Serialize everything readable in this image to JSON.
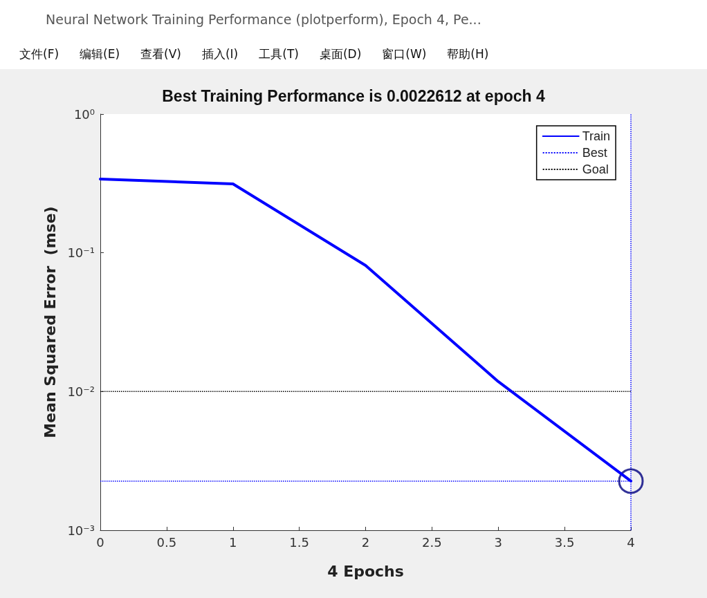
{
  "chart_data": {
    "type": "line",
    "title": "Best Training Performance is 0.0022612 at epoch 4",
    "xlabel": "4 Epochs",
    "ylabel": "Mean Squared Error  (mse)",
    "annotations": [
      "Neural Network Training Performance (plotperform), Epoch 4, Pe...",
      "文件(F)",
      "编辑(E)",
      "查看(V)",
      "插入(I)",
      "工具(T)",
      "桌面(D)",
      "窗口(W)",
      "帮助(H)"
    ],
    "x": [
      0,
      1,
      2,
      3,
      4
    ],
    "series": [
      {
        "name": "Train",
        "color": "#0000ff",
        "values": [
          0.34,
          0.314,
          0.081,
          0.0118,
          0.0022612
        ]
      },
      {
        "type": "scatter",
        "marker": "circle",
        "color": "#000080",
        "x": [
          4
        ],
        "values": [
          0.0022612
        ]
      }
    ],
    "ref_lines": [
      {
        "axis": "x",
        "value": 4,
        "label": "Best",
        "color": "#0000ff",
        "line_style": "dotted"
      },
      {
        "axis": "y",
        "value": 0.0022612,
        "color": "#0000ff",
        "line_style": "dotted"
      },
      {
        "axis": "y",
        "value": 0.01,
        "label": "Goal",
        "color": "#000000",
        "line_style": "dotted"
      }
    ],
    "xlim": [
      0,
      4
    ],
    "xticks": [
      0,
      0.5,
      1,
      1.5,
      2,
      2.5,
      3,
      3.5,
      4
    ],
    "ylim": [
      0.001,
      1
    ],
    "yticks": [
      {
        "value": 0.001,
        "label": "10⁻³"
      },
      {
        "value": 0.01,
        "label": "10⁻²"
      },
      {
        "value": 0.1,
        "label": "10⁻¹"
      },
      {
        "value": 1,
        "label": "10⁰"
      }
    ],
    "log": "y",
    "grid": false,
    "legend": "top right",
    "line_style": "solid"
  }
}
